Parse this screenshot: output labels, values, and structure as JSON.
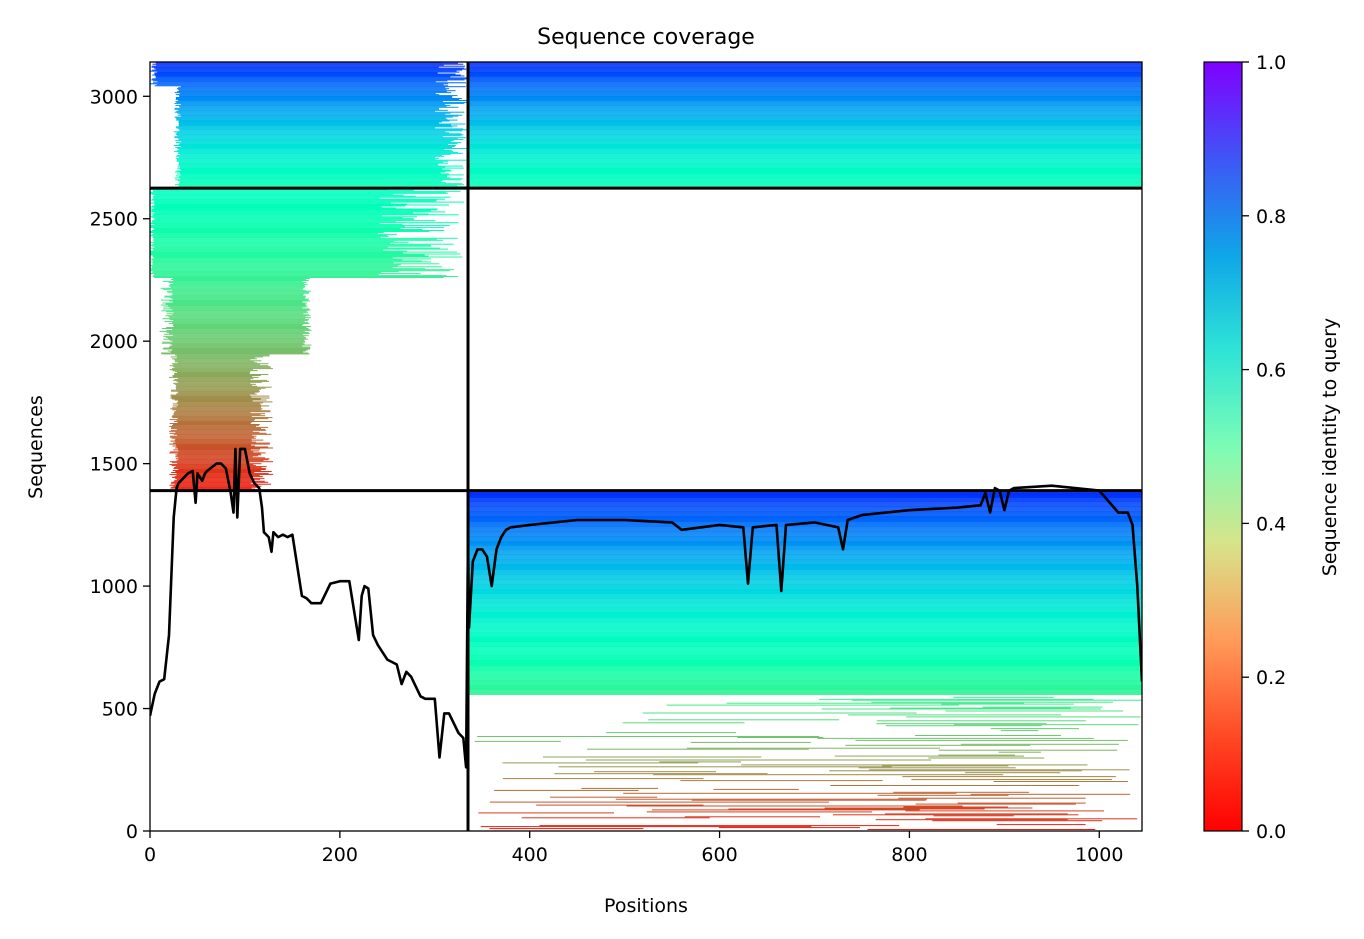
{
  "chart_data": {
    "type": "heatmap",
    "title": "Sequence coverage",
    "xlabel": "Positions",
    "ylabel": "Sequences",
    "xlim": [
      0,
      1045
    ],
    "ylim": [
      0,
      3140
    ],
    "x_ticks": [
      0,
      200,
      400,
      600,
      800,
      1000
    ],
    "y_ticks": [
      0,
      500,
      1000,
      1500,
      2000,
      2500,
      3000
    ],
    "grid": false,
    "colorbar": {
      "label": "Sequence identity to query",
      "colormap": "rainbow_r",
      "range": [
        0,
        1
      ],
      "ticks": [
        0.0,
        0.2,
        0.4,
        0.6,
        0.8,
        1.0
      ],
      "colors": [
        "#ff0000",
        "#ff7f40",
        "#c8f07f",
        "#56f0c0",
        "#0fa5e8",
        "#8000ff"
      ]
    },
    "blocks": [
      {
        "x_range": [
          0,
          335
        ],
        "y_range": [
          2625,
          3140
        ],
        "coverage_x": [
          25,
          315
        ],
        "identity_top": 0.95,
        "identity_bottom": 0.5
      },
      {
        "x_range": [
          335,
          1045
        ],
        "y_range": [
          2625,
          3140
        ],
        "coverage_x": [
          335,
          1045
        ],
        "identity_top": 0.95,
        "identity_bottom": 0.5
      },
      {
        "x_range": [
          0,
          335
        ],
        "y_range": [
          1390,
          2625
        ],
        "coverage_x": [
          5,
          330
        ],
        "identity_top": 0.55,
        "identity_bottom": 0.03
      },
      {
        "x_range": [
          335,
          1045
        ],
        "y_range": [
          0,
          1390
        ],
        "coverage_x": [
          335,
          1045
        ],
        "identity_top": 0.95,
        "identity_bottom": 0.03
      }
    ],
    "divider_lines": {
      "x": [
        335
      ],
      "y": [
        1390,
        2625
      ]
    },
    "series": [
      {
        "x": [
          0,
          5,
          10,
          15,
          20,
          25,
          28,
          30,
          35,
          40,
          45,
          48,
          50,
          55,
          58,
          60,
          70,
          75,
          80,
          85,
          88,
          90,
          92,
          95,
          100,
          105,
          110,
          115,
          118,
          120,
          125,
          128,
          130,
          135,
          140,
          145,
          150,
          160,
          165,
          170,
          180,
          190,
          200,
          210,
          220,
          223,
          226,
          230,
          235,
          240,
          250,
          260,
          265,
          270,
          275,
          285,
          290,
          300,
          305,
          310,
          315,
          325,
          330,
          333,
          335,
          336,
          340,
          345,
          350,
          355,
          360,
          365,
          370,
          375,
          380,
          400,
          450,
          500,
          550,
          560,
          600,
          625,
          630,
          635,
          660,
          665,
          670,
          700,
          725,
          730,
          735,
          750,
          800,
          850,
          875,
          880,
          885,
          890,
          895,
          900,
          905,
          910,
          950,
          1000,
          1020,
          1030,
          1035,
          1040,
          1045
        ],
        "y": [
          470,
          560,
          610,
          620,
          800,
          1280,
          1400,
          1420,
          1440,
          1460,
          1470,
          1340,
          1460,
          1430,
          1460,
          1470,
          1500,
          1500,
          1480,
          1380,
          1300,
          1560,
          1280,
          1560,
          1560,
          1460,
          1420,
          1400,
          1320,
          1220,
          1200,
          1140,
          1220,
          1200,
          1210,
          1200,
          1210,
          960,
          950,
          930,
          930,
          1010,
          1020,
          1020,
          780,
          960,
          1000,
          990,
          800,
          760,
          700,
          680,
          600,
          650,
          630,
          550,
          540,
          540,
          300,
          480,
          480,
          400,
          380,
          260,
          1200,
          830,
          1100,
          1150,
          1150,
          1120,
          1000,
          1150,
          1200,
          1230,
          1240,
          1250,
          1270,
          1270,
          1260,
          1230,
          1250,
          1240,
          1010,
          1240,
          1250,
          980,
          1250,
          1260,
          1240,
          1150,
          1270,
          1290,
          1310,
          1320,
          1330,
          1380,
          1300,
          1400,
          1390,
          1310,
          1390,
          1400,
          1410,
          1390,
          1300,
          1300,
          1250,
          1000,
          610
        ]
      }
    ]
  }
}
